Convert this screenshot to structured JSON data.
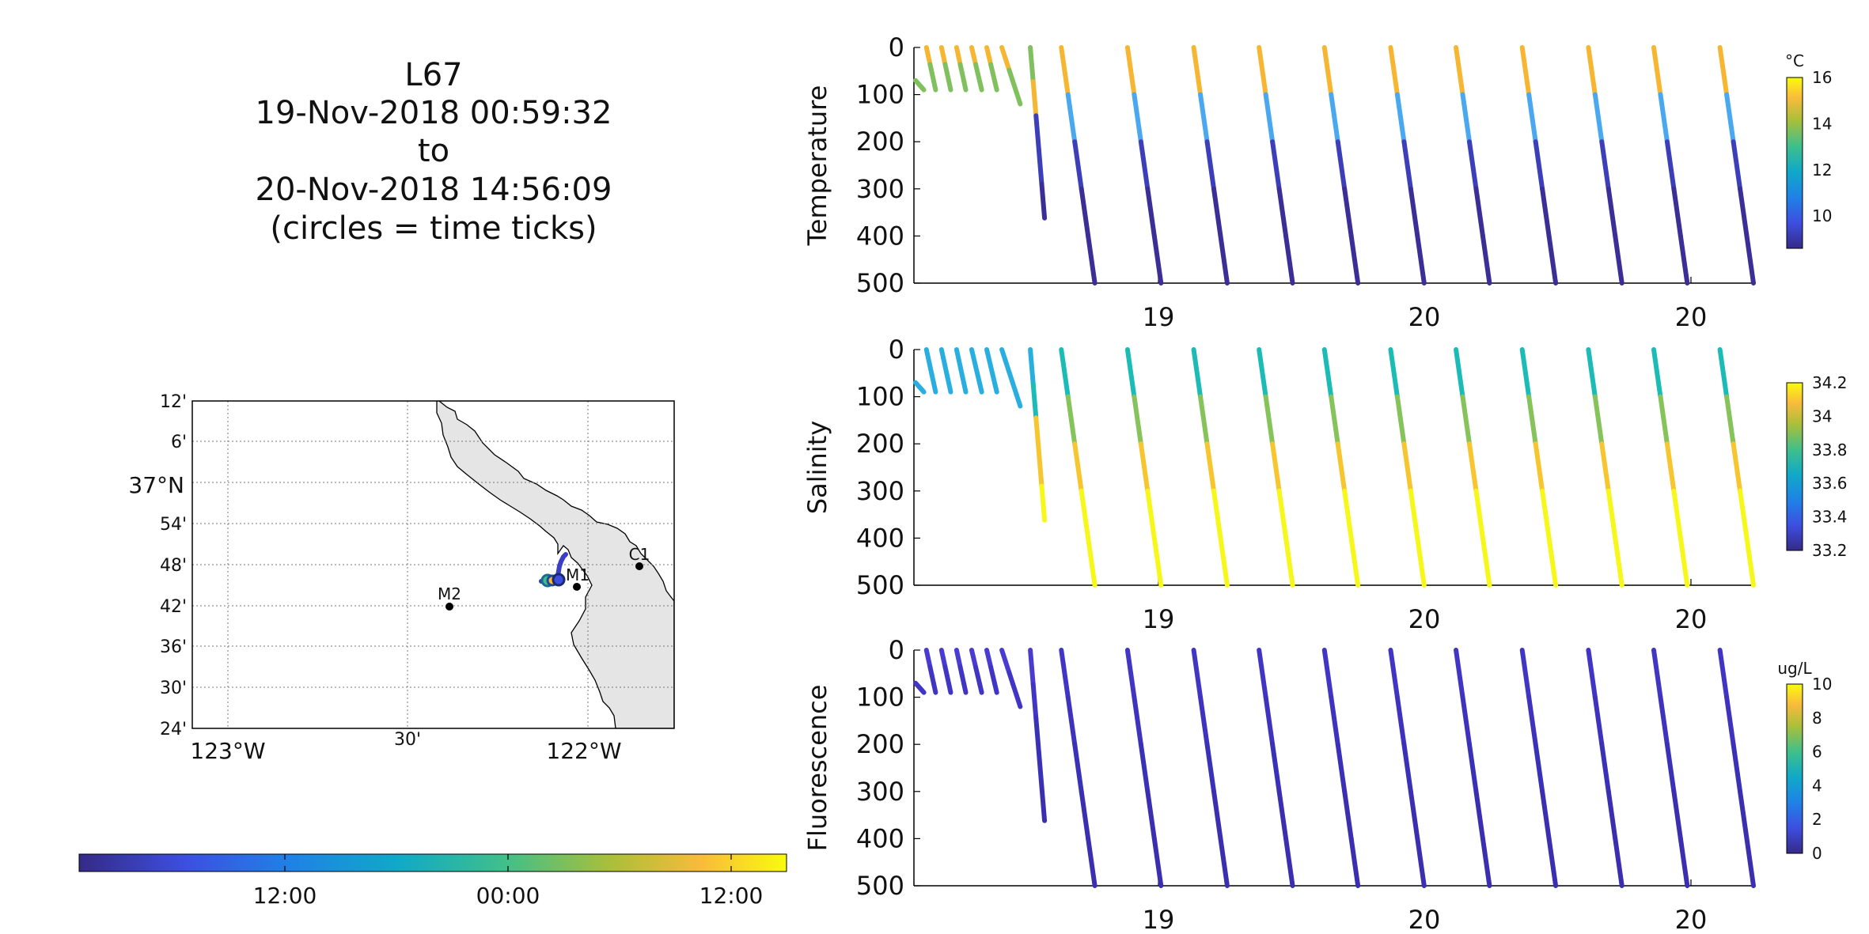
{
  "header": {
    "lines": [
      "L67",
      "19-Nov-2018 00:59:32",
      "to",
      "20-Nov-2018 14:56:09",
      "(circles = time ticks)"
    ]
  },
  "chart_data": [
    {
      "type": "scatter",
      "name": "Temperature",
      "ylabel": "Temperature",
      "ylim": [
        0,
        500
      ],
      "yreverse": true,
      "yticks": [
        "0",
        "100",
        "200",
        "300",
        "400",
        "500"
      ],
      "xticks": [
        "19",
        "20",
        "20"
      ],
      "colorbar": {
        "unit": "°C",
        "ticks": [
          "16",
          "14",
          "12",
          "10"
        ],
        "range": [
          8.6,
          16
        ]
      },
      "colors": [
        "#80c05f",
        "#f6b632",
        "#4aa8f0",
        "#3c3fb8",
        "#3b2e96"
      ]
    },
    {
      "type": "scatter",
      "name": "Salinity",
      "ylabel": "Salinity",
      "ylim": [
        0,
        500
      ],
      "yreverse": true,
      "yticks": [
        "0",
        "100",
        "200",
        "300",
        "400",
        "500"
      ],
      "xticks": [
        "19",
        "20",
        "20"
      ],
      "colorbar": {
        "unit": "",
        "ticks": [
          "34.2",
          "34",
          "33.8",
          "33.6",
          "33.4",
          "33.2"
        ],
        "range": [
          33.2,
          34.2
        ]
      },
      "colors": [
        "#29aee0",
        "#1cbcb6",
        "#86c35a",
        "#f7c62f",
        "#f7f81a"
      ]
    },
    {
      "type": "scatter",
      "name": "Fluorescence",
      "ylabel": "Fluorescence",
      "ylim": [
        0,
        500
      ],
      "yreverse": true,
      "yticks": [
        "0",
        "100",
        "200",
        "300",
        "400",
        "500"
      ],
      "xticks": [
        "19",
        "20",
        "20"
      ],
      "colorbar": {
        "unit": "ug/L",
        "ticks": [
          "10",
          "8",
          "6",
          "4",
          "2",
          "0"
        ],
        "range": [
          0,
          10
        ]
      },
      "colors": [
        "#4a3cd0",
        "#4136c4",
        "#3f33be",
        "#3a32b6",
        "#3b2fb0"
      ]
    },
    {
      "type": "scatter",
      "name": "map",
      "ylabels": [
        "12'",
        "6'",
        "37°N",
        "54'",
        "48'",
        "42'",
        "36'",
        "30'",
        "24'"
      ],
      "xlabels": [
        "123°W",
        "30'",
        "122°W"
      ],
      "stations": [
        {
          "label": "M2",
          "lon": -122.378,
          "lat": 36.697
        },
        {
          "label": "M1",
          "lon": -122.03,
          "lat": 36.747
        },
        {
          "label": "C1",
          "lon": -121.85,
          "lat": 36.797
        }
      ]
    },
    {
      "type": "heatmap",
      "name": "time-colorbar",
      "ticks": [
        "12:00",
        "00:00",
        "12:00"
      ]
    }
  ],
  "profiles": [
    {
      "x0": 0.0,
      "x1": 0.01,
      "top": 70,
      "bottom": 90
    },
    {
      "x0": 0.013,
      "x1": 0.024,
      "top": 0,
      "bottom": 90
    },
    {
      "x0": 0.031,
      "x1": 0.042,
      "top": 0,
      "bottom": 90
    },
    {
      "x0": 0.049,
      "x1": 0.06,
      "top": 0,
      "bottom": 90
    },
    {
      "x0": 0.067,
      "x1": 0.079,
      "top": 0,
      "bottom": 90
    },
    {
      "x0": 0.085,
      "x1": 0.097,
      "top": 0,
      "bottom": 90
    },
    {
      "x0": 0.103,
      "x1": 0.125,
      "top": 0,
      "bottom": 120
    },
    {
      "x0": 0.137,
      "x1": 0.154,
      "top": 0,
      "bottom": 362
    },
    {
      "x0": 0.174,
      "x1": 0.214,
      "top": 0,
      "bottom": 500
    },
    {
      "x0": 0.253,
      "x1": 0.293,
      "top": 0,
      "bottom": 500
    },
    {
      "x0": 0.332,
      "x1": 0.372,
      "top": 0,
      "bottom": 500
    },
    {
      "x0": 0.41,
      "x1": 0.45,
      "top": 0,
      "bottom": 500
    },
    {
      "x0": 0.488,
      "x1": 0.528,
      "top": 0,
      "bottom": 500
    },
    {
      "x0": 0.567,
      "x1": 0.607,
      "top": 0,
      "bottom": 500
    },
    {
      "x0": 0.645,
      "x1": 0.685,
      "top": 0,
      "bottom": 500
    },
    {
      "x0": 0.724,
      "x1": 0.764,
      "top": 0,
      "bottom": 500
    },
    {
      "x0": 0.803,
      "x1": 0.843,
      "top": 0,
      "bottom": 500
    },
    {
      "x0": 0.881,
      "x1": 0.921,
      "top": 0,
      "bottom": 500
    },
    {
      "x0": 0.96,
      "x1": 1.0,
      "top": 0,
      "bottom": 500
    }
  ]
}
